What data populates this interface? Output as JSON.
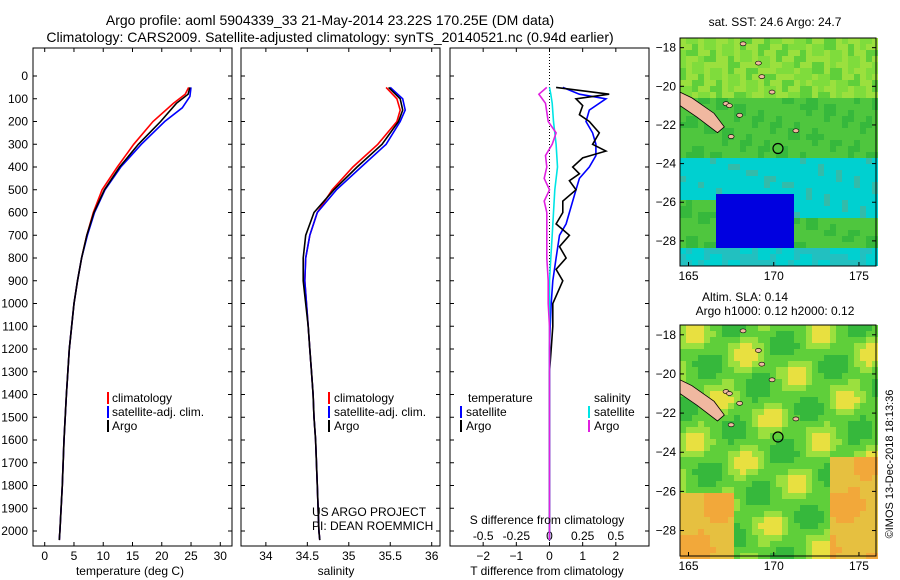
{
  "header": {
    "title_line1": "Argo profile: aoml 5904339_33 21-May-2014 23.22S 170.25E (DM data)",
    "title_line2": "Climatology: CARS2009. Satellite-adjusted climatology: synTS_20140521.nc (0.94d earlier)"
  },
  "colors": {
    "climatology": "#ff0000",
    "satellite": "#0000ff",
    "argo": "#000000",
    "sat_salinity": "#00e5e5",
    "argo_salinity": "#e020e0"
  },
  "chart_data": [
    {
      "type": "line",
      "name": "temperature",
      "xlabel": "temperature (deg C)",
      "xlim": [
        -2,
        32
      ],
      "ylim": [
        2050,
        0
      ],
      "xticks": [
        0,
        5,
        10,
        15,
        20,
        25,
        30
      ],
      "yticks": [
        0,
        100,
        200,
        300,
        400,
        500,
        600,
        700,
        800,
        900,
        1000,
        1100,
        1200,
        1300,
        1400,
        1500,
        1600,
        1700,
        1800,
        1900,
        2000
      ],
      "legend": [
        "climatology",
        "satellite-adj. clim.",
        "Argo"
      ],
      "series": [
        {
          "name": "climatology",
          "depth": [
            50,
            80,
            120,
            200,
            300,
            400,
            500,
            600,
            700,
            800,
            900,
            1000,
            1200,
            1400,
            1600,
            1800,
            2000,
            2040
          ],
          "values": [
            24.6,
            24,
            22,
            18.5,
            15.2,
            12.4,
            9.8,
            8.3,
            7.2,
            6.3,
            5.6,
            5,
            4.2,
            3.7,
            3.3,
            3,
            2.6,
            2.5
          ]
        },
        {
          "name": "satellite-adj. clim.",
          "depth": [
            50,
            90,
            140,
            200,
            300,
            400,
            500,
            600,
            700,
            800,
            900,
            1000,
            1200,
            1400,
            1600,
            1800,
            2000,
            2040
          ],
          "values": [
            25,
            24.8,
            23.5,
            20.5,
            16.5,
            13,
            10.3,
            8.5,
            7.3,
            6.3,
            5.6,
            5,
            4.2,
            3.7,
            3.3,
            3,
            2.6,
            2.5
          ]
        },
        {
          "name": "Argo",
          "depth": [
            50,
            80,
            120,
            200,
            300,
            400,
            500,
            600,
            700,
            800,
            900,
            1000,
            1200,
            1400,
            1600,
            1800,
            2000,
            2040
          ],
          "values": [
            24.8,
            24.5,
            22.5,
            19.8,
            16,
            12.8,
            10.2,
            8.4,
            7.2,
            6.3,
            5.6,
            5,
            4.2,
            3.7,
            3.3,
            3,
            2.6,
            2.5
          ]
        }
      ]
    },
    {
      "type": "line",
      "name": "salinity",
      "xlabel": "salinity",
      "xlim": [
        33.7,
        36.1
      ],
      "ylim": [
        2050,
        0
      ],
      "xticks": [
        34,
        34.5,
        35,
        35.5,
        36
      ],
      "legend": [
        "climatology",
        "satellite-adj. clim.",
        "Argo"
      ],
      "credit": [
        "US ARGO PROJECT",
        "PI: DEAN ROEMMICH"
      ],
      "series": [
        {
          "name": "climatology",
          "depth": [
            50,
            100,
            150,
            200,
            300,
            400,
            500,
            600,
            700,
            800,
            900,
            1000,
            1100,
            1200,
            1300,
            1400,
            1500,
            1600,
            1800,
            2000,
            2040
          ],
          "values": [
            35.45,
            35.58,
            35.62,
            35.58,
            35.35,
            35.05,
            34.8,
            34.62,
            34.53,
            34.48,
            34.47,
            34.49,
            34.51,
            34.53,
            34.55,
            34.57,
            34.58,
            34.6,
            34.62,
            34.64,
            34.65
          ]
        },
        {
          "name": "satellite-adj. clim.",
          "depth": [
            50,
            100,
            150,
            200,
            300,
            400,
            500,
            600,
            700,
            800,
            900,
            1000,
            1100,
            1200,
            1300,
            1400,
            1500,
            1600,
            1800,
            2000,
            2040
          ],
          "values": [
            35.5,
            35.65,
            35.68,
            35.62,
            35.45,
            35.15,
            34.85,
            34.62,
            34.53,
            34.48,
            34.47,
            34.49,
            34.51,
            34.53,
            34.55,
            34.57,
            34.58,
            34.6,
            34.62,
            34.64,
            34.65
          ]
        },
        {
          "name": "Argo",
          "depth": [
            50,
            100,
            150,
            200,
            300,
            400,
            500,
            600,
            700,
            800,
            900,
            1000,
            1100,
            1200,
            1300,
            1400,
            1500,
            1600,
            1800,
            2000,
            2040
          ],
          "values": [
            35.48,
            35.62,
            35.65,
            35.6,
            35.4,
            35.1,
            34.82,
            34.58,
            34.48,
            34.45,
            34.45,
            34.48,
            34.51,
            34.53,
            34.55,
            34.57,
            34.58,
            34.6,
            34.62,
            34.64,
            34.65
          ]
        }
      ]
    },
    {
      "type": "line",
      "name": "difference",
      "xlabel": "T difference from climatology",
      "xlabel2": "S difference from climatology",
      "xlim": [
        -3,
        3
      ],
      "ylim": [
        2050,
        0
      ],
      "xticks": [
        -2,
        -1,
        0,
        1,
        2
      ],
      "sticks_label": [
        -0.5,
        -0.25,
        0,
        0.25,
        0.5
      ],
      "legend_left_title": "temperature",
      "legend_left": [
        "satellite",
        "Argo"
      ],
      "legend_right_title": "salinity",
      "legend_right": [
        "satellite",
        "Argo"
      ],
      "series": [
        {
          "name": "T satellite",
          "depth": [
            50,
            80,
            100,
            150,
            200,
            250,
            300,
            350,
            400,
            450,
            500,
            550,
            600,
            650,
            700,
            800,
            900,
            1000,
            1100,
            1200,
            1300,
            1500,
            1700,
            1900,
            2040
          ],
          "values": [
            0.4,
            0.9,
            1.7,
            1.2,
            1.1,
            1.3,
            1.4,
            1.4,
            1.2,
            0.9,
            0.8,
            0.7,
            0.6,
            0.5,
            0.3,
            0.2,
            0.1,
            0.05,
            0.02,
            0,
            0,
            0,
            0,
            0,
            0
          ]
        },
        {
          "name": "T Argo",
          "depth": [
            50,
            80,
            100,
            130,
            170,
            200,
            250,
            300,
            330,
            360,
            400,
            430,
            460,
            500,
            550,
            600,
            650,
            700,
            750,
            800,
            850,
            900,
            1000,
            1100,
            1200,
            1300,
            1500,
            1700,
            1900,
            2040
          ],
          "values": [
            0.2,
            1.8,
            0.8,
            1.0,
            0.9,
            1.2,
            1.5,
            1.3,
            1.7,
            1.0,
            0.7,
            0.9,
            0.6,
            0.8,
            0.4,
            0.4,
            0.2,
            0.6,
            0.3,
            0.5,
            0.2,
            0.4,
            0.1,
            0.1,
            0.05,
            0,
            0,
            0,
            0,
            0
          ]
        },
        {
          "name": "S satellite",
          "depth": [
            50,
            80,
            120,
            200,
            300,
            400,
            500,
            600,
            700,
            800,
            900,
            1000,
            1200,
            1500,
            1800,
            2040
          ],
          "values": [
            0,
            0.01,
            0.02,
            0.03,
            0.05,
            0.06,
            0.04,
            0.03,
            0.02,
            0.01,
            0,
            0,
            0,
            0,
            0,
            0
          ]
        },
        {
          "name": "S Argo",
          "depth": [
            50,
            80,
            120,
            200,
            250,
            300,
            350,
            400,
            450,
            500,
            550,
            600,
            700,
            800,
            900,
            1000,
            1100,
            1200,
            1500,
            1800,
            2040
          ],
          "values": [
            -0.02,
            -0.08,
            -0.03,
            -0.01,
            0.05,
            0.02,
            -0.03,
            -0.02,
            -0.04,
            0,
            -0.04,
            -0.02,
            -0.02,
            -0.02,
            -0.01,
            -0.01,
            0,
            0,
            0,
            0,
            0
          ]
        }
      ]
    },
    {
      "type": "heatmap",
      "name": "sst_map",
      "title": "sat. SST: 24.6 Argo: 24.7",
      "xlim": [
        164.5,
        176
      ],
      "ylim": [
        -29.3,
        -17.5
      ],
      "xticks": [
        165,
        170,
        175
      ],
      "yticks": [
        -18,
        -20,
        -22,
        -24,
        -26,
        -28
      ],
      "marker": [
        170.25,
        -23.22
      ]
    },
    {
      "type": "heatmap",
      "name": "sla_map",
      "title1": "Altim. SLA: 0.14",
      "title2": "Argo h1000: 0.12 h2000: 0.12",
      "xlim": [
        164.5,
        176
      ],
      "ylim": [
        -29.3,
        -17.5
      ],
      "xticks": [
        165,
        170,
        175
      ],
      "yticks": [
        -18,
        -20,
        -22,
        -24,
        -26,
        -28
      ],
      "marker": [
        170.25,
        -23.22
      ]
    }
  ],
  "watermark": "©IMOS 13-Dec-2018 18:13:36"
}
